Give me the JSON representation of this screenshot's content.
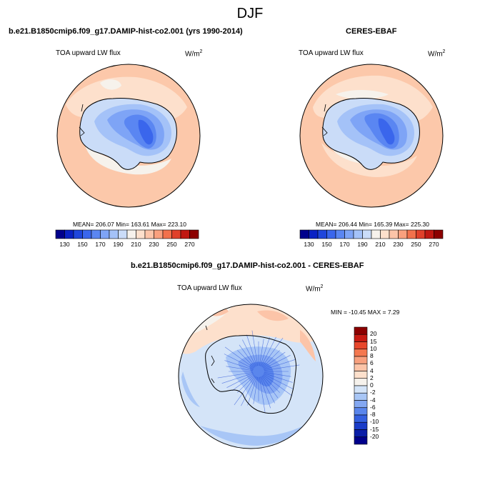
{
  "figure": {
    "title": "DJF",
    "panels": [
      {
        "id": "model",
        "title": "b.e21.B1850cmip6.f09_g17.DAMIP-hist-co2.001 (yrs 1990-2014)",
        "variable": "TOA upward LW flux",
        "units_base": "W/m",
        "units_exp": "2",
        "stats_text": "MEAN= 206.07  Min= 163.61  Max= 223.10",
        "mean": 206.07,
        "min": 163.61,
        "max": 223.1
      },
      {
        "id": "obs",
        "title": "CERES-EBAF",
        "variable": "TOA upward LW flux",
        "units_base": "W/m",
        "units_exp": "2",
        "stats_text": "MEAN= 206.44  Min= 165.39  Max= 225.30",
        "mean": 206.44,
        "min": 165.39,
        "max": 225.3
      },
      {
        "id": "diff",
        "title": "b.e21.B1850cmip6.f09_g17.DAMIP-hist-co2.001 - CERES-EBAF",
        "variable": "TOA upward LW flux",
        "units_base": "W/m",
        "units_exp": "2",
        "stats_text": "MIN = -10.45 MAX =  7.29",
        "min": -10.45,
        "max": 7.29
      }
    ],
    "colorbar_abs": {
      "levels": [
        130,
        140,
        150,
        160,
        170,
        180,
        190,
        200,
        210,
        220,
        230,
        240,
        250,
        260,
        270
      ],
      "tick_labels": [
        "130",
        "150",
        "170",
        "190",
        "210",
        "230",
        "250",
        "270"
      ],
      "colors": [
        "#00008c",
        "#0a22c4",
        "#1f46dc",
        "#3a66ec",
        "#5a86f2",
        "#7ea4f6",
        "#a4c2f8",
        "#cadcf8",
        "#f6f2ec",
        "#fde0cc",
        "#fcc4a8",
        "#f9a07e",
        "#f2714c",
        "#e0402a",
        "#c01812",
        "#8c0000"
      ]
    },
    "colorbar_diff": {
      "labels": [
        "20",
        "15",
        "10",
        "8",
        "6",
        "4",
        "2",
        "0",
        "-2",
        "-4",
        "-6",
        "-8",
        "-10",
        "-15",
        "-20"
      ],
      "colors": [
        "#8c0000",
        "#c81a12",
        "#e8482c",
        "#f47850",
        "#f8a07e",
        "#fcc4a8",
        "#fde0cc",
        "#f6f2ec",
        "#d4e4f8",
        "#a8c6f6",
        "#84a8f2",
        "#5a86ec",
        "#3460e0",
        "#1a3cc8",
        "#0a1ea8",
        "#00008c"
      ]
    }
  }
}
